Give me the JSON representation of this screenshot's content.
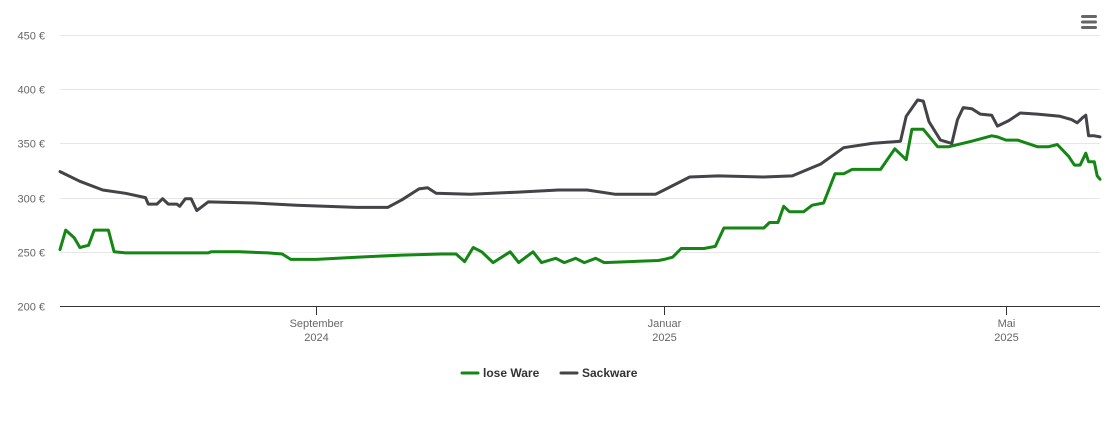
{
  "chart_data": {
    "type": "line",
    "title": "",
    "xlabel": "",
    "ylabel": "",
    "ylim": [
      200,
      450
    ],
    "y_ticks": [
      "200 €",
      "250 €",
      "300 €",
      "350 €",
      "400 €",
      "450 €"
    ],
    "y_tick_values": [
      200,
      250,
      300,
      350,
      400,
      450
    ],
    "x_range": [
      "2024-06-03",
      "2025-06-03"
    ],
    "x_ticks": [
      {
        "date": "2024-09-01",
        "line1": "September",
        "line2": "2024"
      },
      {
        "date": "2025-01-01",
        "line1": "Januar",
        "line2": "2025"
      },
      {
        "date": "2025-05-01",
        "line1": "Mai",
        "line2": "2025"
      }
    ],
    "grid": true,
    "legend_position": "bottom-center",
    "series": [
      {
        "name": "lose Ware",
        "color": "#138613",
        "points": [
          [
            "2024-06-03",
            252
          ],
          [
            "2024-06-05",
            270
          ],
          [
            "2024-06-08",
            263
          ],
          [
            "2024-06-10",
            254
          ],
          [
            "2024-06-13",
            256
          ],
          [
            "2024-06-15",
            270
          ],
          [
            "2024-06-18",
            270
          ],
          [
            "2024-06-20",
            270
          ],
          [
            "2024-06-22",
            250
          ],
          [
            "2024-06-26",
            249
          ],
          [
            "2024-07-15",
            249
          ],
          [
            "2024-07-25",
            249
          ],
          [
            "2024-07-26",
            250
          ],
          [
            "2024-08-05",
            250
          ],
          [
            "2024-08-15",
            249
          ],
          [
            "2024-08-20",
            248
          ],
          [
            "2024-08-23",
            243
          ],
          [
            "2024-09-01",
            243
          ],
          [
            "2024-09-15",
            245
          ],
          [
            "2024-10-01",
            247
          ],
          [
            "2024-10-15",
            248
          ],
          [
            "2024-10-20",
            248
          ],
          [
            "2024-10-23",
            241
          ],
          [
            "2024-10-26",
            254
          ],
          [
            "2024-10-29",
            250
          ],
          [
            "2024-11-02",
            240
          ],
          [
            "2024-11-08",
            250
          ],
          [
            "2024-11-11",
            240
          ],
          [
            "2024-11-16",
            250
          ],
          [
            "2024-11-19",
            240
          ],
          [
            "2024-11-24",
            244
          ],
          [
            "2024-11-27",
            240
          ],
          [
            "2024-12-01",
            244
          ],
          [
            "2024-12-04",
            240
          ],
          [
            "2024-12-08",
            244
          ],
          [
            "2024-12-11",
            240
          ],
          [
            "2024-12-20",
            241
          ],
          [
            "2024-12-30",
            242
          ],
          [
            "2025-01-01",
            243
          ],
          [
            "2025-01-04",
            245
          ],
          [
            "2025-01-07",
            253
          ],
          [
            "2025-01-15",
            253
          ],
          [
            "2025-01-19",
            255
          ],
          [
            "2025-01-22",
            272
          ],
          [
            "2025-02-02",
            272
          ],
          [
            "2025-02-05",
            272
          ],
          [
            "2025-02-07",
            277
          ],
          [
            "2025-02-10",
            277
          ],
          [
            "2025-02-12",
            292
          ],
          [
            "2025-02-14",
            287
          ],
          [
            "2025-02-19",
            287
          ],
          [
            "2025-02-22",
            293
          ],
          [
            "2025-02-26",
            295
          ],
          [
            "2025-03-02",
            322
          ],
          [
            "2025-03-05",
            322
          ],
          [
            "2025-03-08",
            326
          ],
          [
            "2025-03-18",
            326
          ],
          [
            "2025-03-23",
            345
          ],
          [
            "2025-03-27",
            335
          ],
          [
            "2025-03-29",
            363
          ],
          [
            "2025-04-02",
            363
          ],
          [
            "2025-04-07",
            347
          ],
          [
            "2025-04-11",
            347
          ],
          [
            "2025-04-19",
            352
          ],
          [
            "2025-04-26",
            357
          ],
          [
            "2025-04-28",
            356
          ],
          [
            "2025-05-01",
            353
          ],
          [
            "2025-05-05",
            353
          ],
          [
            "2025-05-12",
            347
          ],
          [
            "2025-05-16",
            347
          ],
          [
            "2025-05-19",
            349
          ],
          [
            "2025-05-23",
            338
          ],
          [
            "2025-05-25",
            330
          ],
          [
            "2025-05-27",
            330
          ],
          [
            "2025-05-29",
            341
          ],
          [
            "2025-05-30",
            333
          ],
          [
            "2025-06-01",
            333
          ],
          [
            "2025-06-02",
            320
          ],
          [
            "2025-06-03",
            317
          ]
        ]
      },
      {
        "name": "Sackware",
        "color": "#434348",
        "points": [
          [
            "2024-06-03",
            324
          ],
          [
            "2024-06-10",
            315
          ],
          [
            "2024-06-18",
            307
          ],
          [
            "2024-06-26",
            304
          ],
          [
            "2024-07-03",
            300
          ],
          [
            "2024-07-04",
            294
          ],
          [
            "2024-07-07",
            294
          ],
          [
            "2024-07-09",
            299
          ],
          [
            "2024-07-11",
            294
          ],
          [
            "2024-07-14",
            294
          ],
          [
            "2024-07-15",
            292
          ],
          [
            "2024-07-17",
            299
          ],
          [
            "2024-07-19",
            299
          ],
          [
            "2024-07-21",
            288
          ],
          [
            "2024-07-25",
            296
          ],
          [
            "2024-08-10",
            295
          ],
          [
            "2024-08-25",
            293
          ],
          [
            "2024-09-15",
            291
          ],
          [
            "2024-09-26",
            291
          ],
          [
            "2024-10-01",
            298
          ],
          [
            "2024-10-07",
            308
          ],
          [
            "2024-10-10",
            309
          ],
          [
            "2024-10-13",
            304
          ],
          [
            "2024-10-25",
            303
          ],
          [
            "2024-11-10",
            305
          ],
          [
            "2024-11-25",
            307
          ],
          [
            "2024-12-05",
            307
          ],
          [
            "2024-12-15",
            303
          ],
          [
            "2024-12-29",
            303
          ],
          [
            "2025-01-01",
            307
          ],
          [
            "2025-01-10",
            319
          ],
          [
            "2025-01-20",
            320
          ],
          [
            "2025-02-05",
            319
          ],
          [
            "2025-02-15",
            320
          ],
          [
            "2025-02-25",
            331
          ],
          [
            "2025-03-05",
            346
          ],
          [
            "2025-03-15",
            350
          ],
          [
            "2025-03-25",
            352
          ],
          [
            "2025-03-27",
            375
          ],
          [
            "2025-03-31",
            390
          ],
          [
            "2025-04-02",
            389
          ],
          [
            "2025-04-04",
            370
          ],
          [
            "2025-04-08",
            353
          ],
          [
            "2025-04-12",
            350
          ],
          [
            "2025-04-14",
            372
          ],
          [
            "2025-04-16",
            383
          ],
          [
            "2025-04-19",
            382
          ],
          [
            "2025-04-22",
            377
          ],
          [
            "2025-04-26",
            376
          ],
          [
            "2025-04-28",
            366
          ],
          [
            "2025-05-02",
            371
          ],
          [
            "2025-05-06",
            378
          ],
          [
            "2025-05-12",
            377
          ],
          [
            "2025-05-20",
            375
          ],
          [
            "2025-05-24",
            372
          ],
          [
            "2025-05-26",
            369
          ],
          [
            "2025-05-28",
            374
          ],
          [
            "2025-05-29",
            376
          ],
          [
            "2025-05-30",
            357
          ],
          [
            "2025-06-01",
            357
          ],
          [
            "2025-06-03",
            356
          ]
        ]
      }
    ]
  },
  "menu": {
    "icon": "hamburger-menu-icon"
  }
}
